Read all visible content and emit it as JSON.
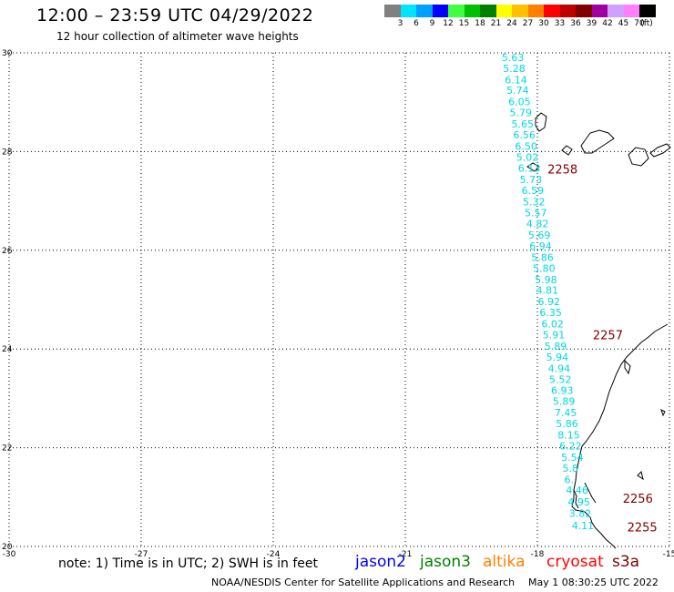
{
  "title": "12:00 – 23:59 UTC 04/29/2022",
  "subtitle": "12 hour collection of altimeter wave heights",
  "legend": {
    "colors": [
      "#808080",
      "#00e5ff",
      "#00a0ff",
      "#0000ff",
      "#40ff40",
      "#00c000",
      "#008000",
      "#ffff00",
      "#ffc000",
      "#ff8000",
      "#ff0000",
      "#c00000",
      "#800000",
      "#a000a0",
      "#d0a0ff",
      "#ff80ff",
      "#000000"
    ],
    "labels": [
      "3",
      "6",
      "9",
      "12",
      "15",
      "18",
      "21",
      "24",
      "27",
      "30",
      "33",
      "36",
      "39",
      "42",
      "45",
      "70",
      "(ft)"
    ]
  },
  "axes": {
    "x_ticks": [
      "-30",
      "-27",
      "-24",
      "-21",
      "-18",
      "-15"
    ],
    "y_ticks": [
      "30",
      "28",
      "26",
      "24",
      "22",
      "20"
    ],
    "lon_range": [
      -30,
      -15
    ],
    "lat_range": [
      20,
      30
    ]
  },
  "wave_heights": [
    {
      "lat": 29.91,
      "lon": -18.81,
      "text": "5.63"
    },
    {
      "lat": 29.69,
      "lon": -18.78,
      "text": "5.28"
    },
    {
      "lat": 29.46,
      "lon": -18.74,
      "text": "6.14"
    },
    {
      "lat": 29.24,
      "lon": -18.7,
      "text": "5.74"
    },
    {
      "lat": 29.01,
      "lon": -18.66,
      "text": "6.05"
    },
    {
      "lat": 28.79,
      "lon": -18.63,
      "text": "5.79"
    },
    {
      "lat": 28.56,
      "lon": -18.59,
      "text": "5.65"
    },
    {
      "lat": 28.34,
      "lon": -18.55,
      "text": "6.56"
    },
    {
      "lat": 28.11,
      "lon": -18.51,
      "text": "6.50"
    },
    {
      "lat": 27.89,
      "lon": -18.48,
      "text": "5.02"
    },
    {
      "lat": 27.67,
      "lon": -18.44,
      "text": "6.13"
    },
    {
      "lat": 27.44,
      "lon": -18.4,
      "text": "5.73"
    },
    {
      "lat": 27.21,
      "lon": -18.36,
      "text": "6.59"
    },
    {
      "lat": 26.98,
      "lon": -18.33,
      "text": "5.32"
    },
    {
      "lat": 26.76,
      "lon": -18.29,
      "text": "5.57"
    },
    {
      "lat": 26.54,
      "lon": -18.25,
      "text": "4.82"
    },
    {
      "lat": 26.31,
      "lon": -18.21,
      "text": "5.69"
    },
    {
      "lat": 26.09,
      "lon": -18.18,
      "text": "6.94"
    },
    {
      "lat": 25.86,
      "lon": -18.14,
      "text": "5.86"
    },
    {
      "lat": 25.64,
      "lon": -18.1,
      "text": "5.80"
    },
    {
      "lat": 25.41,
      "lon": -18.06,
      "text": "5.98"
    },
    {
      "lat": 25.19,
      "lon": -18.03,
      "text": "4.81"
    },
    {
      "lat": 24.96,
      "lon": -17.99,
      "text": "6.92"
    },
    {
      "lat": 24.74,
      "lon": -17.95,
      "text": "6.35"
    },
    {
      "lat": 24.51,
      "lon": -17.91,
      "text": "6.02"
    },
    {
      "lat": 24.29,
      "lon": -17.88,
      "text": "5.91"
    },
    {
      "lat": 24.06,
      "lon": -17.84,
      "text": "5.89"
    },
    {
      "lat": 23.84,
      "lon": -17.8,
      "text": "5.94"
    },
    {
      "lat": 23.61,
      "lon": -17.76,
      "text": "4.94"
    },
    {
      "lat": 23.39,
      "lon": -17.73,
      "text": "5.52"
    },
    {
      "lat": 23.16,
      "lon": -17.69,
      "text": "6.93"
    },
    {
      "lat": 22.94,
      "lon": -17.65,
      "text": "5.89"
    },
    {
      "lat": 22.71,
      "lon": -17.61,
      "text": "7.45"
    },
    {
      "lat": 22.49,
      "lon": -17.58,
      "text": "5.86"
    },
    {
      "lat": 22.26,
      "lon": -17.54,
      "text": "8.15"
    },
    {
      "lat": 22.04,
      "lon": -17.5,
      "text": "6.22"
    },
    {
      "lat": 21.81,
      "lon": -17.46,
      "text": "5.54"
    },
    {
      "lat": 21.59,
      "lon": -17.43,
      "text": "5.8"
    },
    {
      "lat": 21.36,
      "lon": -17.39,
      "text": "6."
    },
    {
      "lat": 21.14,
      "lon": -17.35,
      "text": "4.46"
    },
    {
      "lat": 20.9,
      "lon": -17.31,
      "text": "4.95"
    },
    {
      "lat": 20.67,
      "lon": -17.28,
      "text": "3.82"
    },
    {
      "lat": 20.42,
      "lon": -17.22,
      "text": "4.11"
    }
  ],
  "time_markers": [
    {
      "lat": 27.65,
      "lon": -17.77,
      "text": "2258"
    },
    {
      "lat": 24.29,
      "lon": -16.74,
      "text": "2257"
    },
    {
      "lat": 20.98,
      "lon": -16.06,
      "text": "2256"
    },
    {
      "lat": 20.4,
      "lon": -15.96,
      "text": "2255"
    }
  ],
  "colors": {
    "track": "#00d8e0",
    "marker": "#800000",
    "coast": "#000000",
    "grid": "#000000"
  },
  "note": "note:  1) Time is in UTC;  2) SWH is in feet",
  "satellites": [
    {
      "name": "jason2",
      "color": "#0000ff"
    },
    {
      "name": "jason3",
      "color": "#008000"
    },
    {
      "name": "altika",
      "color": "#ff8000"
    },
    {
      "name": "cryosat",
      "color": "#ff0000"
    },
    {
      "name": "s3a",
      "color": "#800000"
    }
  ],
  "footer": {
    "credit": "NOAA/NESDIS Center for Satellite Applications and Research",
    "timestamp": "May  1 08:30:25 UTC 2022"
  }
}
